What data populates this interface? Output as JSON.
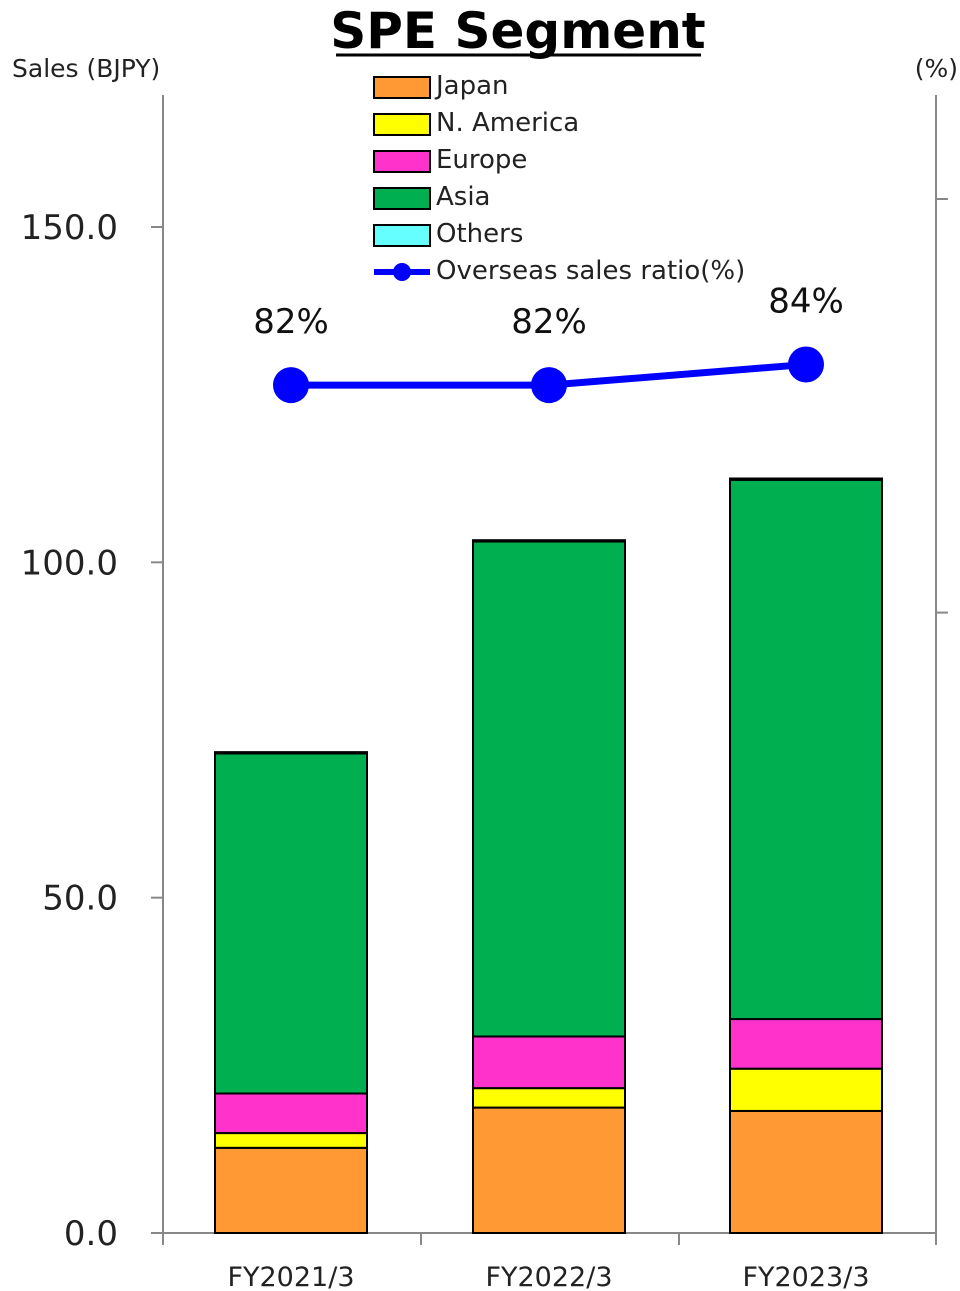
{
  "chart_data": {
    "type": "bar",
    "title": "SPE Segment",
    "ylabel": "Sales (BJPY)",
    "y2label": "(%)",
    "ylim": [
      0,
      170
    ],
    "yticks": [
      "0.0",
      "50.0",
      "100.0",
      "150.0"
    ],
    "ytick_values": [
      0,
      50,
      100,
      150
    ],
    "y2lim": [
      0,
      100
    ],
    "y2tick_values": [
      100,
      60
    ],
    "categories": [
      "FY2021/3",
      "FY2022/3",
      "FY2023/3"
    ],
    "stacked": true,
    "series": [
      {
        "name": "Japan",
        "color": "#FF9933",
        "values": [
          12.7,
          18.7,
          18.2
        ]
      },
      {
        "name": "N. America",
        "color": "#FFFF00",
        "values": [
          2.2,
          2.9,
          6.3
        ]
      },
      {
        "name": "Europe",
        "color": "#FF33CC",
        "values": [
          5.9,
          7.7,
          7.4
        ]
      },
      {
        "name": "Asia",
        "color": "#00B050",
        "values": [
          50.7,
          73.8,
          80.4
        ]
      },
      {
        "name": "Others",
        "color": "#66FFFF",
        "values": [
          0.2,
          0.2,
          0.2
        ]
      }
    ],
    "line_series": {
      "name": "Overseas sales ratio(%)",
      "color": "#0000FF",
      "axis": "right",
      "values": [
        82,
        82,
        84
      ],
      "labels": [
        "82%",
        "82%",
        "84%"
      ]
    },
    "legend_position": "top-center",
    "grid": false
  }
}
